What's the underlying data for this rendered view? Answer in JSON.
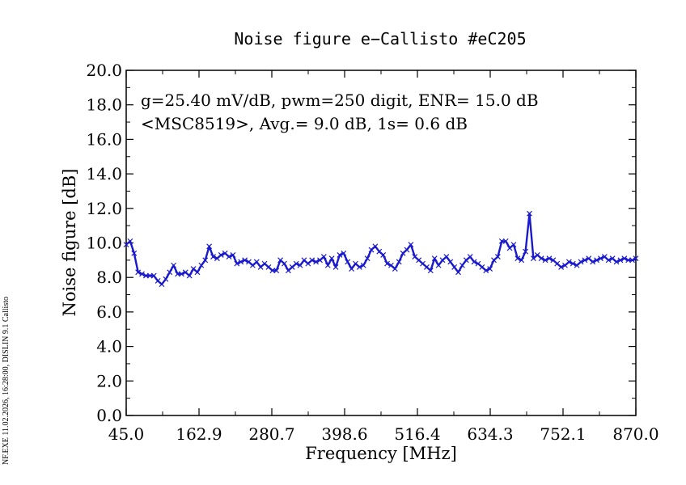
{
  "chart_data": {
    "type": "line",
    "title": "Noise figure e−Callisto #eC205",
    "xlabel": "Frequency [MHz]",
    "ylabel": "Noise figure [dB]",
    "xlim": [
      45.0,
      870.0
    ],
    "ylim": [
      0.0,
      20.0
    ],
    "x_tick_labels": [
      "45.0",
      "162.9",
      "280.7",
      "398.6",
      "516.4",
      "634.3",
      "752.1",
      "870.0"
    ],
    "y_tick_labels": [
      "0.0",
      "2.0",
      "4.0",
      "6.0",
      "8.0",
      "10.0",
      "12.0",
      "14.0",
      "16.0",
      "18.0",
      "20.0"
    ],
    "annotations": [
      "g=25.40 mV/dB, pwm=250 digit, ENR= 15.0 dB",
      "<MSC8519>, Avg.= 9.0 dB, 1s= 0.6 dB"
    ],
    "grid": false,
    "marker": "x",
    "line_color": "#1a1acc",
    "series": [
      {
        "x": [
          45.0,
          51.4,
          57.8,
          64.2,
          70.6,
          77.0,
          83.4,
          89.8,
          96.2,
          102.6,
          109.0,
          115.4,
          121.8,
          128.2,
          134.6,
          141.0,
          147.4,
          153.8,
          160.2,
          166.6,
          173.0,
          179.4,
          185.8,
          192.2,
          198.6,
          205.0,
          211.4,
          217.8,
          224.2,
          230.6,
          237.0,
          243.4,
          249.8,
          256.2,
          262.6,
          269.0,
          275.4,
          281.8,
          288.2,
          294.6,
          301.0,
          307.4,
          313.8,
          320.2,
          326.6,
          333.0,
          339.4,
          345.8,
          352.2,
          358.6,
          365.0,
          371.4,
          377.8,
          384.2,
          390.6,
          397.0,
          403.4,
          409.8,
          416.2,
          422.6,
          429.0,
          435.4,
          441.8,
          448.2,
          454.6,
          461.0,
          467.4,
          473.8,
          480.2,
          486.6,
          493.0,
          499.4,
          505.8,
          512.2,
          518.6,
          525.0,
          531.4,
          537.8,
          544.2,
          550.6,
          557.0,
          563.4,
          569.8,
          576.2,
          582.6,
          589.0,
          595.4,
          601.8,
          608.2,
          614.6,
          621.0,
          627.4,
          633.8,
          640.2,
          646.6,
          653.0,
          659.4,
          665.8,
          672.2,
          678.6,
          685.0,
          691.4,
          697.8,
          704.2,
          710.6,
          717.0,
          723.4,
          729.8,
          736.2,
          742.6,
          749.0,
          755.4,
          761.8,
          768.2,
          774.6,
          781.0,
          787.4,
          793.8,
          800.2,
          806.6,
          813.0,
          819.4,
          825.8,
          832.2,
          838.6,
          845.0,
          851.4,
          857.8,
          864.2,
          870.0
        ],
        "values": [
          9.9,
          10.1,
          9.4,
          8.3,
          8.2,
          8.1,
          8.1,
          8.1,
          7.8,
          7.6,
          7.9,
          8.3,
          8.7,
          8.2,
          8.2,
          8.3,
          8.1,
          8.5,
          8.3,
          8.7,
          9.0,
          9.8,
          9.2,
          9.1,
          9.3,
          9.4,
          9.2,
          9.3,
          8.8,
          8.9,
          9.0,
          8.9,
          8.7,
          8.9,
          8.6,
          8.8,
          8.6,
          8.4,
          8.4,
          9.0,
          8.8,
          8.4,
          8.6,
          8.8,
          8.7,
          9.0,
          8.8,
          9.0,
          8.9,
          9.0,
          9.2,
          8.7,
          9.1,
          8.6,
          9.3,
          9.4,
          8.9,
          8.5,
          8.8,
          8.6,
          8.7,
          9.1,
          9.6,
          9.8,
          9.5,
          9.3,
          8.8,
          8.7,
          8.5,
          8.9,
          9.4,
          9.6,
          9.9,
          9.2,
          9.0,
          8.8,
          8.6,
          8.4,
          9.1,
          8.7,
          9.0,
          9.2,
          8.9,
          8.6,
          8.3,
          8.7,
          9.0,
          9.2,
          8.9,
          8.8,
          8.6,
          8.4,
          8.5,
          9.0,
          9.2,
          10.1,
          10.1,
          9.7,
          9.9,
          9.1,
          9.0,
          9.5,
          11.7,
          9.1,
          9.3,
          9.1,
          9.0,
          9.1,
          9.0,
          8.8,
          8.6,
          8.7,
          8.9,
          8.8,
          8.7,
          8.9,
          9.0,
          9.1,
          8.9,
          9.0,
          9.1,
          9.2,
          9.0,
          9.1,
          8.9,
          9.0,
          9.1,
          9.0,
          9.0,
          9.1
        ]
      }
    ]
  },
  "footer_note": "NF.EXE 11.02.2026, 16:28:00, DISLIN 9.1 Callisto"
}
